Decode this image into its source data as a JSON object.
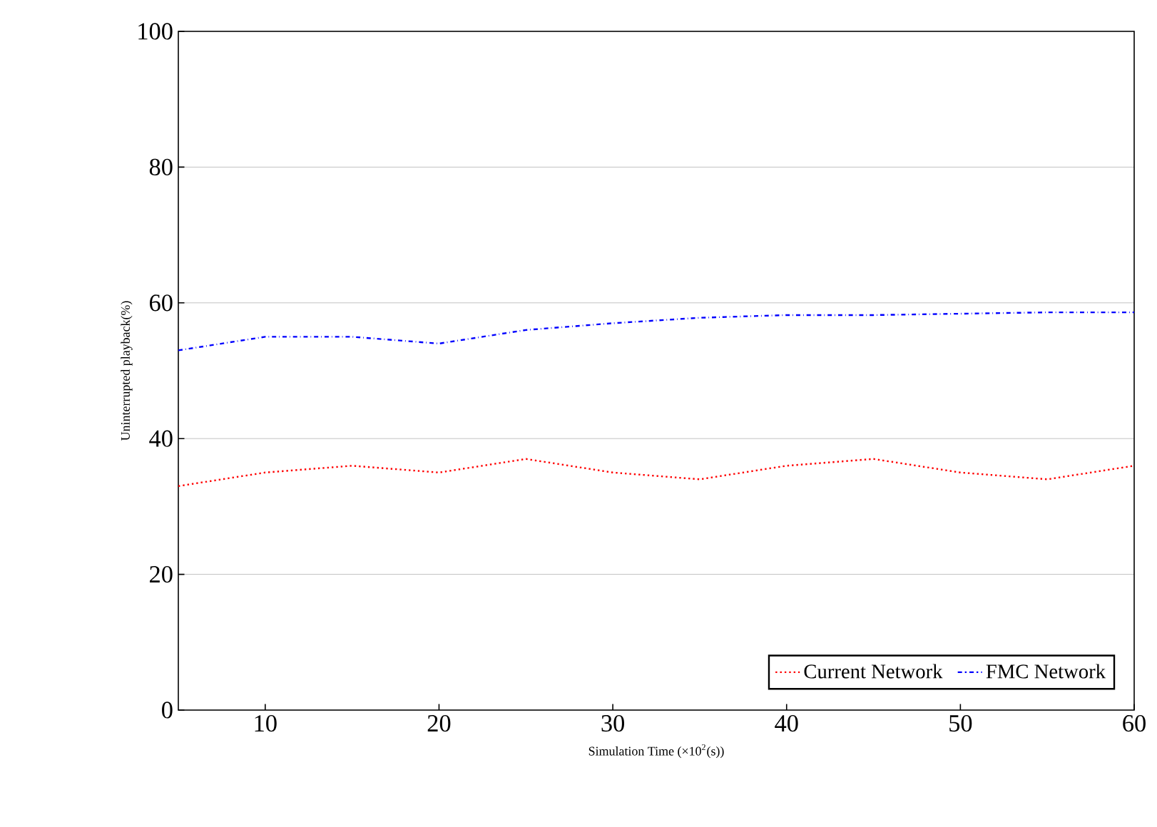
{
  "chart_data": {
    "type": "line",
    "xlabel": "Simulation Time (×10$^{2}$(s))",
    "ylabel": "Uninterrupted playback(%)",
    "x": [
      5,
      10,
      15,
      20,
      25,
      30,
      35,
      40,
      45,
      50,
      55,
      60
    ],
    "series": [
      {
        "name": "Current Network",
        "color": "#ff0000",
        "line_style": "dotted",
        "values": [
          33,
          35,
          36,
          35,
          37,
          35,
          34,
          36,
          37,
          35,
          34,
          36
        ]
      },
      {
        "name": "FMC Network",
        "color": "#0000ff",
        "line_style": "dashdot",
        "values": [
          53,
          55,
          55,
          54,
          56,
          57,
          57.8,
          58.2,
          58.2,
          58.4,
          58.6,
          58.6
        ]
      }
    ],
    "xlim": [
      5,
      60
    ],
    "ylim": [
      0,
      100
    ],
    "xticks": [
      10,
      20,
      30,
      40,
      50,
      60
    ],
    "yticks": [
      0,
      20,
      40,
      60,
      80,
      100
    ],
    "grid": "y",
    "legend": "bottom",
    "marker": "none"
  }
}
